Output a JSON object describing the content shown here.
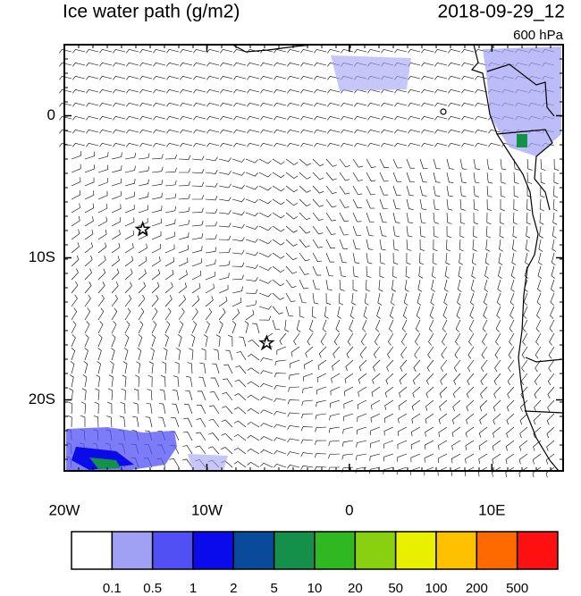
{
  "title": "Ice water path (g/m2)",
  "valid_time": "2018-09-29_12",
  "level": "600 hPa",
  "map": {
    "lon_range": [
      -20,
      15
    ],
    "lat_range": [
      5,
      -25
    ],
    "lon_ticks": [
      {
        "value": -20,
        "label": "20W"
      },
      {
        "value": -10,
        "label": "10W"
      },
      {
        "value": 0,
        "label": "0"
      },
      {
        "value": 10,
        "label": "10E"
      }
    ],
    "lat_ticks": [
      {
        "value": 0,
        "label": "0"
      },
      {
        "value": -10,
        "label": "10S"
      },
      {
        "value": -20,
        "label": "20S"
      }
    ],
    "markers": [
      {
        "lon": -14.5,
        "lat": -8
      },
      {
        "lon": -5.8,
        "lat": -16
      }
    ]
  },
  "colorbar": {
    "colors": [
      "#ffffff",
      "#a0a0f5",
      "#5050f5",
      "#0a0aea",
      "#0a4a9a",
      "#14904a",
      "#30b820",
      "#88d010",
      "#e8f000",
      "#ffc000",
      "#ff6a00",
      "#ff1010"
    ],
    "levels": [
      0.1,
      0.5,
      1,
      2,
      5,
      10,
      20,
      50,
      100,
      200,
      500
    ]
  }
}
